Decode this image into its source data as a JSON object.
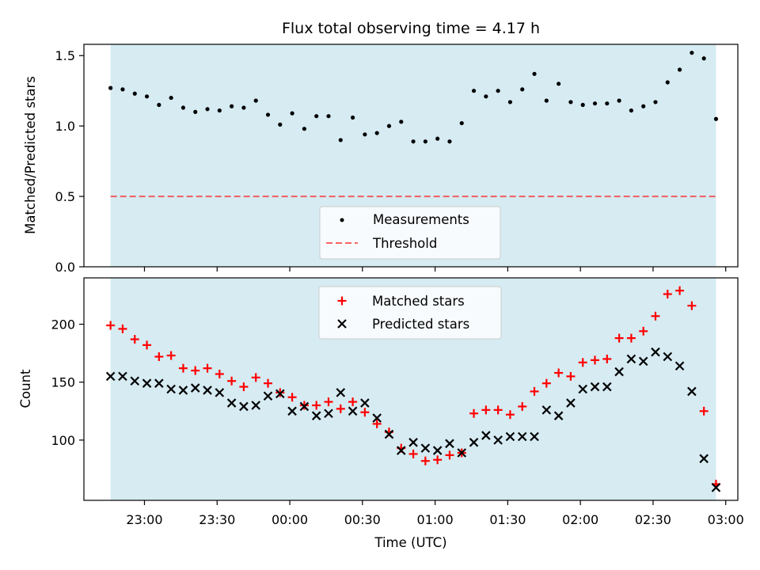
{
  "colors": {
    "shade": "#add8e6",
    "measurement": "#000000",
    "threshold": "#ff0000",
    "matched": "#ff0000",
    "predicted": "#000000"
  },
  "chart_data": [
    {
      "type": "scatter",
      "title": "Flux total observing time = 4.17 h",
      "xlabel": "",
      "ylabel": "Matched/Predicted stars",
      "xlim": [
        "22:35",
        "03:05"
      ],
      "ylim": [
        0,
        1.58
      ],
      "yticks": [
        0.0,
        0.5,
        1.0,
        1.5
      ],
      "ytick_labels": [
        "0.0",
        "0.5",
        "1.0",
        "1.5"
      ],
      "shaded_span": [
        "22:46",
        "02:56"
      ],
      "threshold": {
        "name": "Threshold",
        "value": 0.5,
        "style": "dashed"
      },
      "legend": {
        "location": "lower center",
        "entries": [
          "Measurements",
          "Threshold"
        ]
      },
      "series": [
        {
          "name": "Measurements",
          "x": [
            "22:46",
            "22:51",
            "22:56",
            "23:01",
            "23:06",
            "23:11",
            "23:16",
            "23:21",
            "23:26",
            "23:31",
            "23:36",
            "23:41",
            "23:46",
            "23:51",
            "23:56",
            "00:01",
            "00:06",
            "00:11",
            "00:16",
            "00:21",
            "00:26",
            "00:31",
            "00:36",
            "00:41",
            "00:46",
            "00:51",
            "00:56",
            "01:01",
            "01:06",
            "01:11",
            "01:16",
            "01:21",
            "01:26",
            "01:31",
            "01:36",
            "01:41",
            "01:46",
            "01:51",
            "01:56",
            "02:01",
            "02:06",
            "02:11",
            "02:16",
            "02:21",
            "02:26",
            "02:31",
            "02:36",
            "02:41",
            "02:46",
            "02:51",
            "02:56"
          ],
          "y": [
            1.27,
            1.26,
            1.23,
            1.21,
            1.15,
            1.2,
            1.13,
            1.1,
            1.12,
            1.11,
            1.14,
            1.13,
            1.18,
            1.08,
            1.01,
            1.09,
            0.98,
            1.07,
            1.07,
            0.9,
            1.06,
            0.94,
            0.95,
            1.0,
            1.03,
            0.89,
            0.89,
            0.91,
            0.89,
            1.02,
            1.25,
            1.21,
            1.25,
            1.17,
            1.26,
            1.37,
            1.18,
            1.3,
            1.17,
            1.15,
            1.16,
            1.16,
            1.18,
            1.11,
            1.14,
            1.17,
            1.31,
            1.4,
            1.52,
            1.48,
            1.05
          ]
        }
      ]
    },
    {
      "type": "scatter",
      "title": "",
      "xlabel": "Time (UTC)",
      "ylabel": "Count",
      "xlim": [
        "22:35",
        "03:05"
      ],
      "ylim": [
        48,
        240
      ],
      "yticks": [
        100,
        150,
        200
      ],
      "ytick_labels": [
        "100",
        "150",
        "200"
      ],
      "xticks": [
        "23:00",
        "23:30",
        "00:00",
        "00:30",
        "01:00",
        "01:30",
        "02:00",
        "02:30",
        "03:00"
      ],
      "shaded_span": [
        "22:46",
        "02:56"
      ],
      "legend": {
        "location": "upper center",
        "entries": [
          "Matched stars",
          "Predicted stars"
        ]
      },
      "x": [
        "22:46",
        "22:51",
        "22:56",
        "23:01",
        "23:06",
        "23:11",
        "23:16",
        "23:21",
        "23:26",
        "23:31",
        "23:36",
        "23:41",
        "23:46",
        "23:51",
        "23:56",
        "00:01",
        "00:06",
        "00:11",
        "00:16",
        "00:21",
        "00:26",
        "00:31",
        "00:36",
        "00:41",
        "00:46",
        "00:51",
        "00:56",
        "01:01",
        "01:06",
        "01:11",
        "01:16",
        "01:21",
        "01:26",
        "01:31",
        "01:36",
        "01:41",
        "01:46",
        "01:51",
        "01:56",
        "02:01",
        "02:06",
        "02:11",
        "02:16",
        "02:21",
        "02:26",
        "02:31",
        "02:36",
        "02:41",
        "02:46",
        "02:51",
        "02:56"
      ],
      "series": [
        {
          "name": "Matched stars",
          "marker": "plus",
          "values": [
            199,
            196,
            187,
            182,
            172,
            173,
            162,
            160,
            162,
            157,
            151,
            146,
            154,
            149,
            141,
            137,
            130,
            130,
            133,
            127,
            133,
            124,
            114,
            107,
            93,
            88,
            82,
            83,
            87,
            89,
            123,
            126,
            126,
            122,
            129,
            142,
            149,
            158,
            155,
            167,
            169,
            170,
            188,
            188,
            194,
            207,
            226,
            229,
            216,
            125,
            62
          ]
        },
        {
          "name": "Predicted stars",
          "marker": "x",
          "values": [
            155,
            155,
            151,
            149,
            149,
            144,
            143,
            145,
            143,
            141,
            132,
            129,
            130,
            138,
            140,
            125,
            129,
            121,
            123,
            141,
            125,
            132,
            119,
            105,
            91,
            98,
            93,
            91,
            97,
            89,
            98,
            104,
            100,
            103,
            103,
            103,
            126,
            121,
            132,
            144,
            146,
            146,
            159,
            170,
            168,
            176,
            172,
            164,
            142,
            84,
            59
          ]
        }
      ]
    }
  ]
}
